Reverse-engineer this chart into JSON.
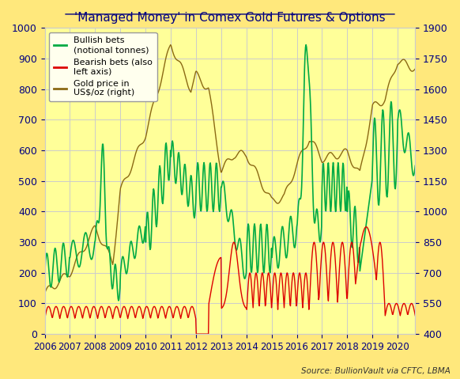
{
  "title": "'Managed Money' in Comex Gold Futures & Options",
  "source_text": "Source: BullionVault via CFTC, LBMA",
  "background_color": "#FFE87C",
  "plot_bg_color": "#FFFF99",
  "legend_bg_color": "#FFFFEE",
  "left_ylim": [
    0,
    1000
  ],
  "right_ylim": [
    400,
    1900
  ],
  "left_yticks": [
    0,
    100,
    200,
    300,
    400,
    500,
    600,
    700,
    800,
    900,
    1000
  ],
  "right_yticks": [
    400,
    550,
    700,
    850,
    1000,
    1150,
    1300,
    1450,
    1600,
    1750,
    1900
  ],
  "xlim_start": 2006.0,
  "xlim_end": 2020.7,
  "xtick_years": [
    2006,
    2007,
    2008,
    2009,
    2010,
    2011,
    2012,
    2013,
    2014,
    2015,
    2016,
    2017,
    2018,
    2019,
    2020
  ],
  "green_color": "#00AA44",
  "red_color": "#DD0000",
  "brown_color": "#8B6914",
  "grid_color": "#CCCCCC",
  "title_color": "#000080",
  "axis_label_color": "#000080",
  "tick_color": "#000080",
  "legend_labels": [
    "Bullish bets\n(notional tonnes)",
    "Bearish bets (also\nleft axis)",
    "Gold price in\nUS$/oz (right)"
  ]
}
